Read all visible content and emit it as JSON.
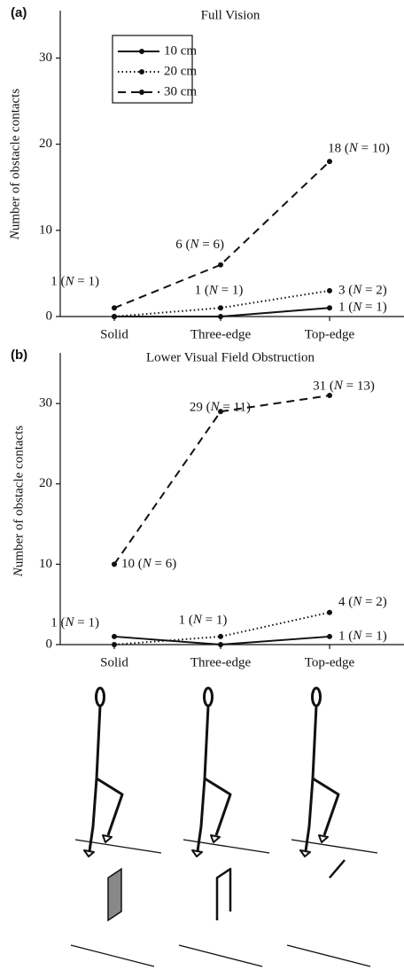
{
  "chart_data": [
    {
      "type": "line",
      "panel": "(a)",
      "title": "Full Vision",
      "ylabel": "Number of obstacle contacts",
      "categories": [
        "Solid",
        "Three-edge",
        "Top-edge"
      ],
      "ylim": [
        0,
        35.5
      ],
      "yticks": [
        0,
        10,
        20,
        30
      ],
      "legend": true,
      "series": [
        {
          "name": "10 cm",
          "color": "#111111",
          "linestyle": "solid",
          "values": [
            0,
            0,
            1
          ],
          "value_labels": [
            null,
            null,
            "1 (N = 1)"
          ]
        },
        {
          "name": "20 cm",
          "color": "#111111",
          "linestyle": "dotted",
          "values": [
            0,
            1,
            3
          ],
          "value_labels": [
            null,
            "1 (N = 1)",
            "3 (N = 2)"
          ]
        },
        {
          "name": "30 cm",
          "color": "#111111",
          "linestyle": "dashed",
          "values": [
            1,
            6,
            18
          ],
          "value_labels": [
            "1 (N = 1)",
            "6 (N = 6)",
            "18 (N = 10)"
          ]
        }
      ]
    },
    {
      "type": "line",
      "panel": "(b)",
      "title": "Lower Visual Field Obstruction",
      "ylabel": "Number of obstacle contacts",
      "categories": [
        "Solid",
        "Three-edge",
        "Top-edge"
      ],
      "ylim": [
        0,
        36.3
      ],
      "yticks": [
        0,
        10,
        20,
        30
      ],
      "legend": false,
      "series": [
        {
          "name": "10 cm",
          "color": "#111111",
          "linestyle": "solid",
          "values": [
            1,
            0,
            1
          ],
          "value_labels": [
            "1 (N = 1)",
            null,
            "1 (N = 1)"
          ]
        },
        {
          "name": "20 cm",
          "color": "#111111",
          "linestyle": "dotted",
          "values": [
            0,
            1,
            4
          ],
          "value_labels": [
            null,
            "1 (N = 1)",
            "4 (N = 2)"
          ]
        },
        {
          "name": "30 cm",
          "color": "#111111",
          "linestyle": "dashed",
          "values": [
            10,
            29,
            31
          ],
          "value_labels": [
            "10 (N = 6)",
            "29 (N = 11)",
            "31 (N = 13)"
          ]
        }
      ]
    }
  ]
}
